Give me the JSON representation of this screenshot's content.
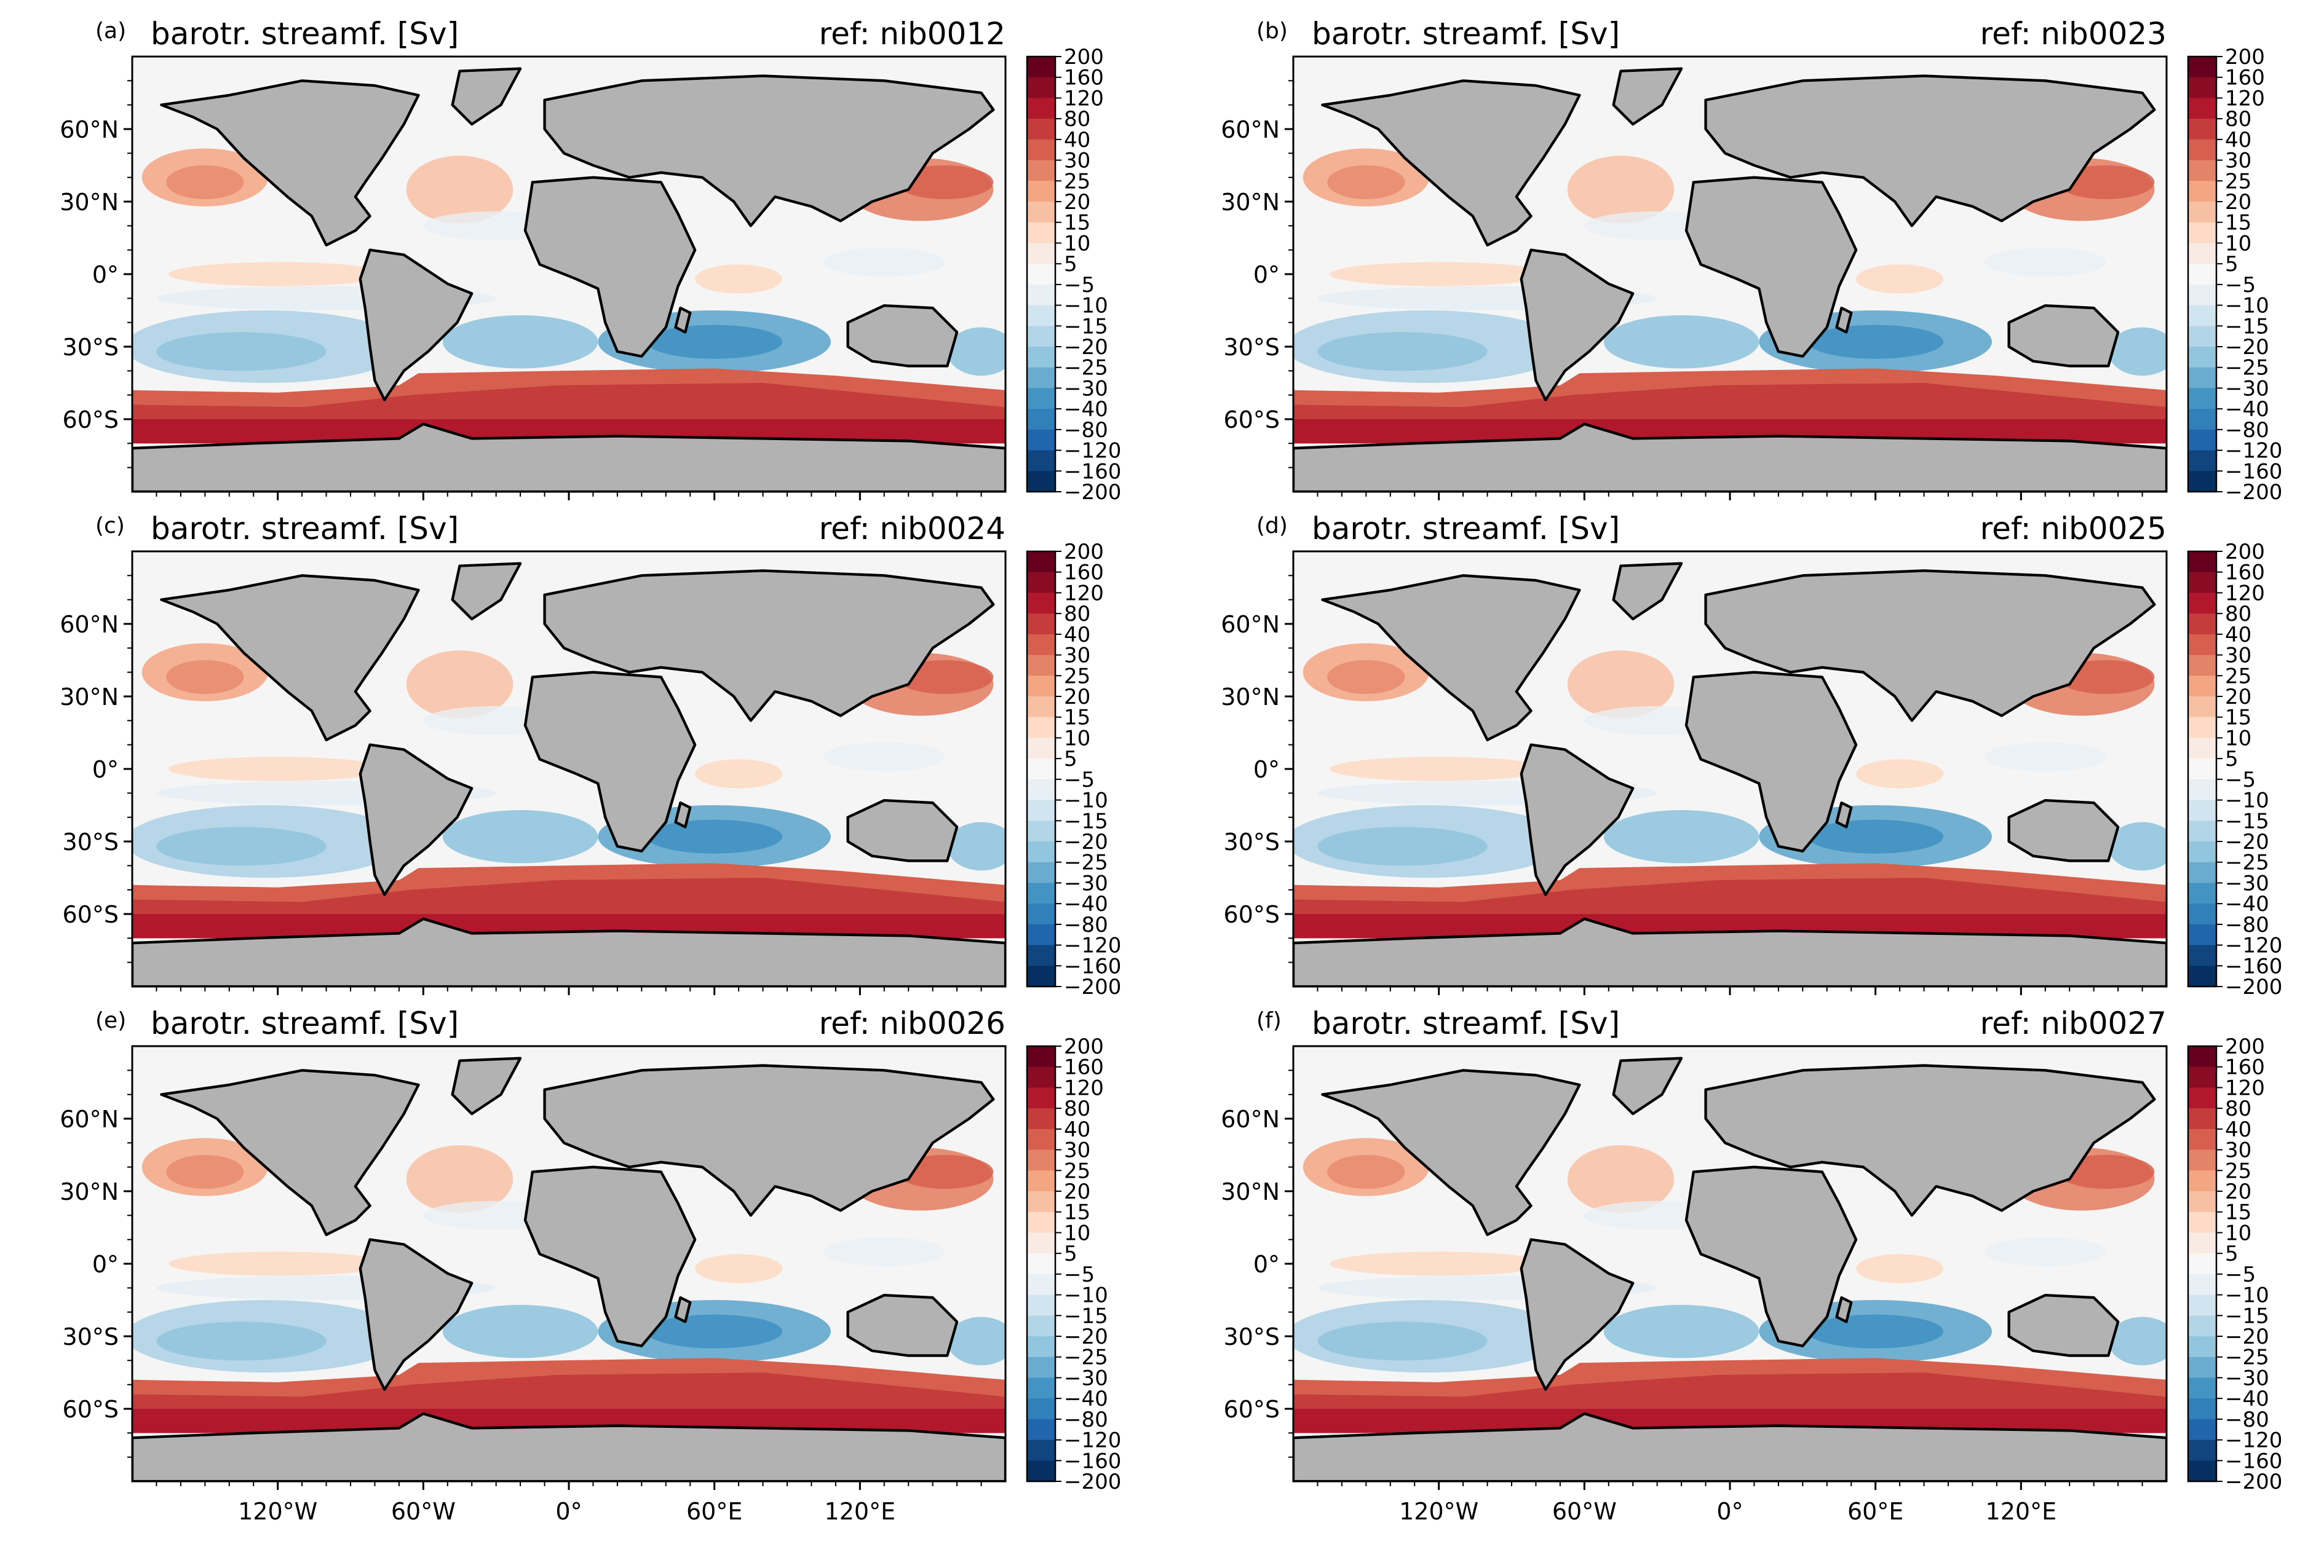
{
  "figure": {
    "colors": {
      "land": "#b2b2b2",
      "ocean_near_zero": "#f5f5f5",
      "colormap": "RdBu_r"
    },
    "colorbar": {
      "levels": [
        "200",
        "160",
        "120",
        "80",
        "40",
        "30",
        "25",
        "20",
        "15",
        "10",
        "5",
        "−5",
        "−10",
        "−15",
        "−20",
        "−25",
        "−30",
        "−40",
        "−80",
        "−120",
        "−160",
        "−200"
      ],
      "colors": [
        "#67001f",
        "#8a0b24",
        "#b2182b",
        "#c43c3c",
        "#d6604d",
        "#e58368",
        "#f4a582",
        "#f8c0a3",
        "#fddbc7",
        "#f9ebe3",
        "#f7f7f7",
        "#e8f0f5",
        "#d1e5f0",
        "#b3d5e8",
        "#92c5de",
        "#6aacd0",
        "#4393c3",
        "#3180b9",
        "#2166ac",
        "#114580",
        "#053061"
      ]
    },
    "x_ticks": [
      "120°W",
      "60°W",
      "0°",
      "60°E",
      "120°E"
    ],
    "y_ticks": [
      "60°N",
      "30°N",
      "0°",
      "30°S",
      "60°S"
    ]
  },
  "chart_data": [
    {
      "type": "heatmap",
      "panel_label": "(a)",
      "title": "barotr. streamf. [Sv]",
      "ref": "ref: nib0012",
      "xlim": [
        -180,
        180
      ],
      "ylim": [
        -90,
        90
      ]
    },
    {
      "type": "heatmap",
      "panel_label": "(b)",
      "title": "barotr. streamf. [Sv]",
      "ref": "ref: nib0023",
      "xlim": [
        -180,
        180
      ],
      "ylim": [
        -90,
        90
      ]
    },
    {
      "type": "heatmap",
      "panel_label": "(c)",
      "title": "barotr. streamf. [Sv]",
      "ref": "ref: nib0024",
      "xlim": [
        -180,
        180
      ],
      "ylim": [
        -90,
        90
      ]
    },
    {
      "type": "heatmap",
      "panel_label": "(d)",
      "title": "barotr. streamf. [Sv]",
      "ref": "ref: nib0025",
      "xlim": [
        -180,
        180
      ],
      "ylim": [
        -90,
        90
      ]
    },
    {
      "type": "heatmap",
      "panel_label": "(e)",
      "title": "barotr. streamf. [Sv]",
      "ref": "ref: nib0026",
      "xlim": [
        -180,
        180
      ],
      "ylim": [
        -90,
        90
      ]
    },
    {
      "type": "heatmap",
      "panel_label": "(f)",
      "title": "barotr. streamf. [Sv]",
      "ref": "ref: nib0027",
      "xlim": [
        -180,
        180
      ],
      "ylim": [
        -90,
        90
      ]
    }
  ]
}
